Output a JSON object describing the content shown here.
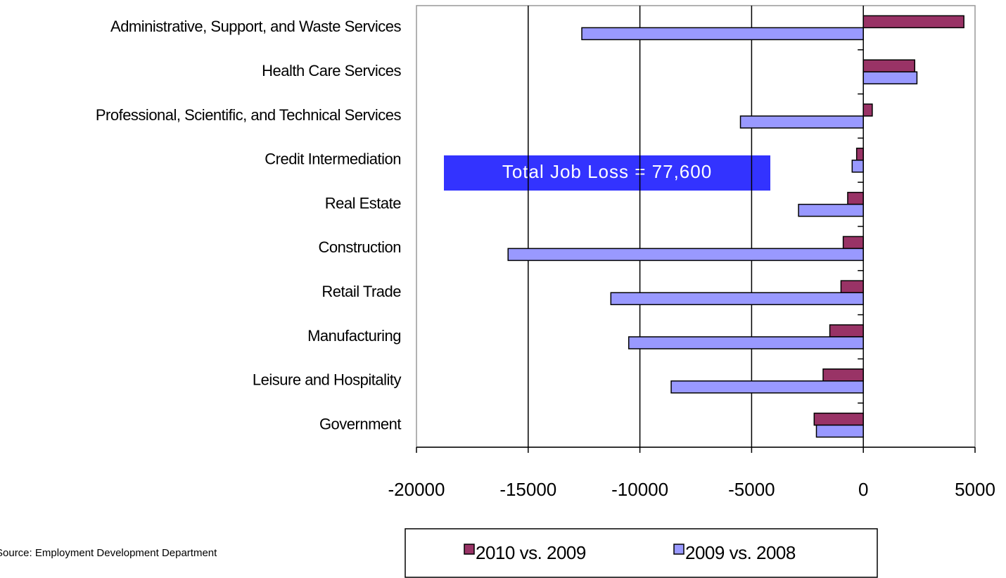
{
  "chart_data": {
    "type": "bar",
    "orientation": "horizontal",
    "categories": [
      "Administrative, Support, and Waste Services",
      "Health Care Services",
      "Professional, Scientific, and Technical Services",
      "Credit Intermediation",
      "Real Estate",
      "Construction",
      "Retail Trade",
      "Manufacturing",
      "Leisure and Hospitality",
      "Government"
    ],
    "series": [
      {
        "name": "2010 vs. 2009",
        "color": "#993366",
        "values": [
          4500,
          2300,
          400,
          -300,
          -700,
          -900,
          -1000,
          -1500,
          -1800,
          -2200
        ]
      },
      {
        "name": "2009 vs. 2008",
        "color": "#9999ff",
        "values": [
          -12600,
          2400,
          -5500,
          -500,
          -2900,
          -15900,
          -11300,
          -10500,
          -8600,
          -2100
        ]
      }
    ],
    "xlim": [
      -20000,
      5000
    ],
    "xticks": [
      -20000,
      -15000,
      -10000,
      -5000,
      0,
      5000
    ],
    "grid": true,
    "annotation": "Total Job Loss = 77,600",
    "source": "Source:  Employment Development Department",
    "legend": "bottom"
  }
}
